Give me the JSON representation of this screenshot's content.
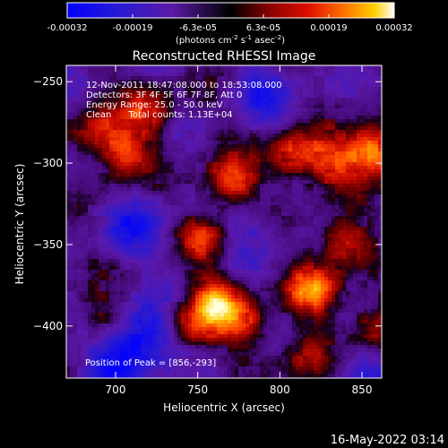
{
  "chart_data": {
    "type": "heatmap",
    "title": "Reconstructed RHESSI Image",
    "xlabel": "Heliocentric X (arcsec)",
    "ylabel": "Heliocentric Y (arcsec)",
    "xlim": [
      670,
      862
    ],
    "ylim": [
      -432,
      -240
    ],
    "xticks": [
      700,
      750,
      800,
      850
    ],
    "yticks": [
      -250,
      -300,
      -350,
      -400
    ],
    "colorbar": {
      "ticks": [
        "-0.00032",
        "-0.00019",
        "-6.3e-05",
        "6.3e-05",
        "0.00019",
        "0.00032"
      ],
      "range": [
        -0.00032,
        0.00032
      ],
      "unit_text": "(photons cm",
      "unit_sup1": "-2",
      "unit_mid": " s",
      "unit_sup2": "-1",
      "unit_mid2": " asec",
      "unit_sup3": "-2",
      "unit_end": ")"
    },
    "annotations": [
      "12-Nov-2011 18:47:08.000 to 18:53:08.000",
      "Detectors: 3F 4F 5F 6F 7F 8F, Att 0",
      "Energy Range: 25.0 - 50.0 keV",
      "Clean      Total counts: 1.13E+04"
    ],
    "peak_label": "Position of Peak = [856,-293]",
    "peak": [
      856,
      -293
    ],
    "hot_sources": [
      {
        "x": 856,
        "y": -293,
        "v": 1.0
      },
      {
        "x": 770,
        "y": -312,
        "v": 0.75
      },
      {
        "x": 706,
        "y": -296,
        "v": 0.6
      },
      {
        "x": 690,
        "y": -280,
        "v": 0.55
      },
      {
        "x": 720,
        "y": -268,
        "v": 0.5
      },
      {
        "x": 755,
        "y": -345,
        "v": 0.55
      },
      {
        "x": 808,
        "y": -295,
        "v": 0.65
      },
      {
        "x": 830,
        "y": -300,
        "v": 0.55
      },
      {
        "x": 820,
        "y": -378,
        "v": 0.75
      },
      {
        "x": 838,
        "y": -350,
        "v": 0.6
      },
      {
        "x": 762,
        "y": -385,
        "v": 0.8
      },
      {
        "x": 746,
        "y": -400,
        "v": 0.6
      },
      {
        "x": 780,
        "y": -400,
        "v": 0.5
      },
      {
        "x": 690,
        "y": -395,
        "v": 0.45
      },
      {
        "x": 858,
        "y": -400,
        "v": 0.55
      },
      {
        "x": 815,
        "y": -420,
        "v": 0.45
      }
    ],
    "cold_sources": [
      {
        "x": 720,
        "y": -405,
        "v": 0.7
      },
      {
        "x": 700,
        "y": -420,
        "v": 0.6
      },
      {
        "x": 712,
        "y": -340,
        "v": 0.5
      },
      {
        "x": 792,
        "y": -255,
        "v": 0.45
      },
      {
        "x": 780,
        "y": -340,
        "v": 0.35
      },
      {
        "x": 850,
        "y": -430,
        "v": 0.4
      }
    ]
  },
  "footer_date": "16-May-2022 03:14"
}
